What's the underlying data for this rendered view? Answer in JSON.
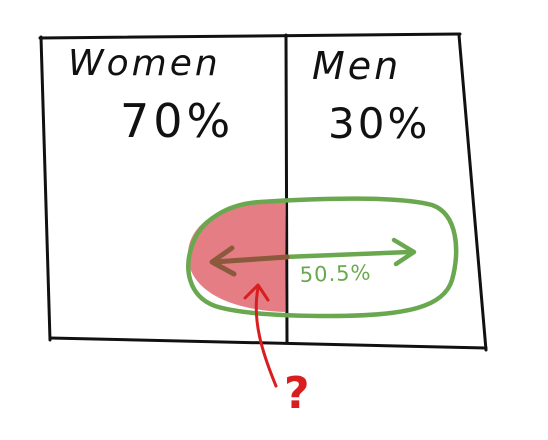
{
  "panels": {
    "left": {
      "label": "Women",
      "percent": "70%"
    },
    "right": {
      "label": "Men",
      "percent": "30%"
    }
  },
  "overlap": {
    "percent": "50.5%"
  },
  "question": {
    "mark": "?"
  },
  "colors": {
    "ink": "#111111",
    "green": "#6aa84f",
    "red_fill": "#e06670",
    "red_ink": "#d81e1e",
    "brown": "#8b5a3c"
  }
}
